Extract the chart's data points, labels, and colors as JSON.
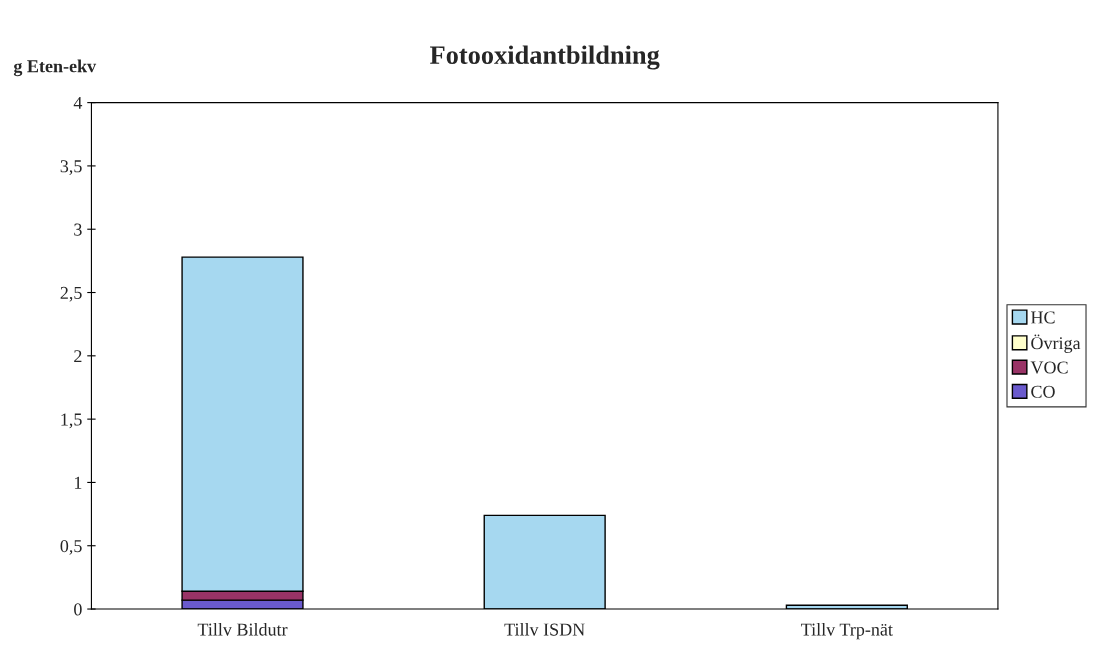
{
  "chart_data": {
    "type": "bar",
    "title": "Fotooxidantbildning",
    "ylabel": "g Eten-ekv",
    "categories": [
      "Tillv Bildutr",
      "Tillv ISDN",
      "Tillv Trp-nät"
    ],
    "stacked": true,
    "series": [
      {
        "name": "CO",
        "color": "#6a5acd",
        "values": [
          0.07,
          0,
          0
        ]
      },
      {
        "name": "VOC",
        "color": "#993366",
        "values": [
          0.07,
          0,
          0
        ]
      },
      {
        "name": "Övriga",
        "color": "#ffffcc",
        "values": [
          0,
          0,
          0
        ]
      },
      {
        "name": "HC",
        "color": "#a6d8f0",
        "values": [
          2.64,
          0.74,
          0.03
        ]
      }
    ],
    "ylim": [
      0,
      4
    ],
    "yticks": [
      0,
      {
        "value": 0.5,
        "label": "0,5"
      },
      1,
      {
        "value": 1.5,
        "label": "1,5"
      },
      2,
      {
        "value": 2.5,
        "label": "2,5"
      },
      3,
      {
        "value": 3.5,
        "label": "3,5"
      },
      4
    ],
    "grid": false,
    "legend": "right"
  }
}
